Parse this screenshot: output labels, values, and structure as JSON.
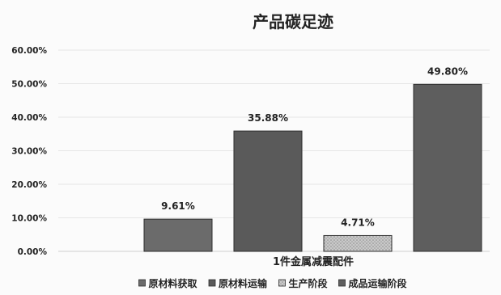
{
  "chart_data": {
    "type": "bar",
    "title": "产品碳足迹",
    "category_label": "1件金属减震配件",
    "ylim": [
      0,
      60
    ],
    "y_tick_labels": [
      "0.00%",
      "10.00%",
      "20.00%",
      "30.00%",
      "40.00%",
      "50.00%",
      "60.00%"
    ],
    "grid": true,
    "legend_position": "bottom",
    "series": [
      {
        "name": "原材料获取",
        "value": 9.61,
        "label": "9.61%",
        "color": "#6b6b6b",
        "pattern": "solid"
      },
      {
        "name": "原材料运输",
        "value": 35.88,
        "label": "35.88%",
        "color": "#5a5a5a",
        "pattern": "solid"
      },
      {
        "name": "生产阶段",
        "value": 4.71,
        "label": "4.71%",
        "color": "#b8b8b8",
        "pattern": "dotted"
      },
      {
        "name": "成品运输阶段",
        "value": 49.8,
        "label": "49.80%",
        "color": "#5e5e5e",
        "pattern": "solid"
      }
    ]
  }
}
